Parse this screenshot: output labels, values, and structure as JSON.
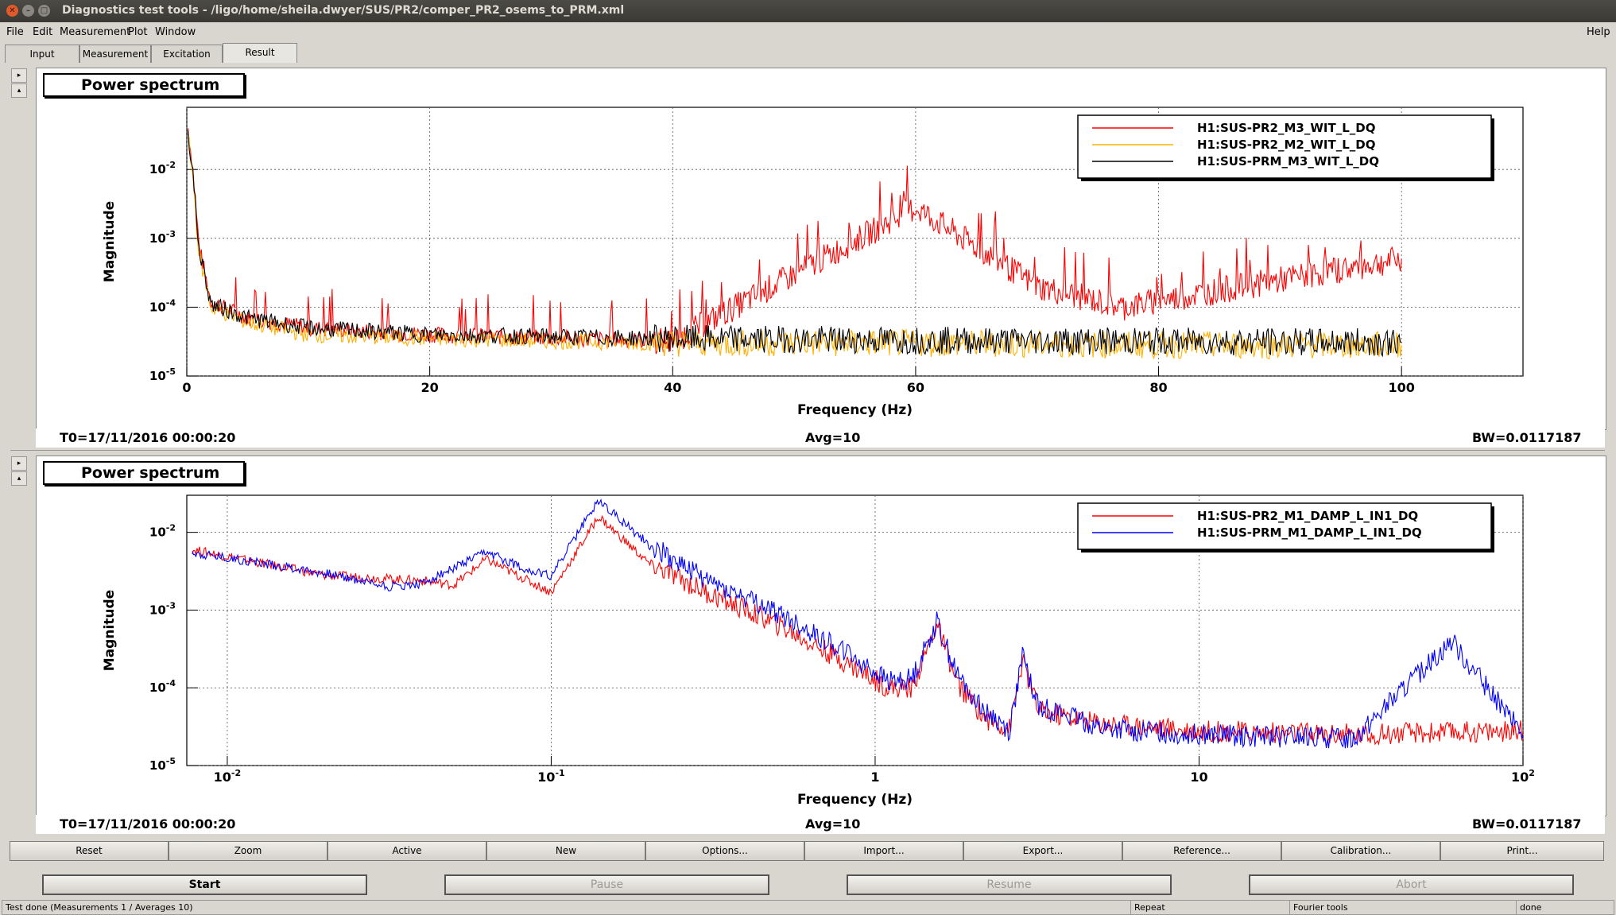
{
  "window": {
    "title": "Diagnostics test tools - /ligo/home/sheila.dwyer/SUS/PR2/comper_PR2_osems_to_PRM.xml",
    "controls": [
      "close-icon",
      "minimize-icon",
      "maximize-icon"
    ]
  },
  "menu": {
    "file": "File",
    "edit": "Edit",
    "measurement": "Measurement",
    "plot": "Plot",
    "window": "Window",
    "help": "Help"
  },
  "tabs": [
    "Input",
    "Measurement",
    "Excitation",
    "Result"
  ],
  "active_tab": "Result",
  "plots": [
    {
      "panel_title": "Power spectrum",
      "t0": "T0=17/11/2016 00:00:20",
      "avg": "Avg=10",
      "bw": "BW=0.0117187"
    },
    {
      "panel_title": "Power spectrum",
      "t0": "T0=17/11/2016 00:00:20",
      "avg": "Avg=10",
      "bw": "BW=0.0117187"
    }
  ],
  "chart_data": [
    {
      "type": "line",
      "xlabel": "Frequency (Hz)",
      "ylabel": "Magnitude",
      "xscale": "linear",
      "yscale": "log",
      "xlim": [
        0,
        110
      ],
      "ylim": [
        1e-05,
        0.08
      ],
      "xticks": [
        "0",
        "20",
        "40",
        "60",
        "80",
        "100"
      ],
      "yticks": [
        "10^-5",
        "10^-4",
        "10^-3",
        "10^-2"
      ],
      "grid": true,
      "legend_position": "top-right",
      "series": [
        {
          "name": "H1:SUS-PR2_M3_WIT_L_DQ",
          "color": "#ff0000",
          "x": [
            0.1,
            0.5,
            1,
            1.5,
            2,
            5,
            10,
            20,
            40,
            60,
            70,
            77,
            100
          ],
          "y": [
            0.04,
            0.01,
            0.0008,
            0.0003,
            0.00012,
            7e-05,
            5e-05,
            4e-05,
            3.2e-05,
            0.0028,
            0.0002,
            0.0001,
            0.0005
          ]
        },
        {
          "name": "H1:SUS-PR2_M2_WIT_L_DQ",
          "color": "#ffb000",
          "x": [
            0.1,
            0.5,
            1,
            2,
            5,
            10,
            20,
            40,
            60,
            80,
            100
          ],
          "y": [
            0.03,
            0.008,
            0.0006,
            0.0001,
            6e-05,
            4e-05,
            3.5e-05,
            3e-05,
            3e-05,
            2.8e-05,
            2.8e-05
          ]
        },
        {
          "name": "H1:SUS-PRM_M3_WIT_L_DQ",
          "color": "#000000",
          "x": [
            0.1,
            0.5,
            1,
            2,
            5,
            10,
            20,
            40,
            60,
            80,
            100
          ],
          "y": [
            0.035,
            0.009,
            0.0007,
            0.00011,
            7e-05,
            5e-05,
            4e-05,
            3.5e-05,
            3.3e-05,
            3.2e-05,
            3.1e-05
          ]
        }
      ]
    },
    {
      "type": "line",
      "xlabel": "Frequency (Hz)",
      "ylabel": "Magnitude",
      "xscale": "log",
      "yscale": "log",
      "xlim": [
        0.0075,
        100
      ],
      "ylim": [
        1e-05,
        0.03
      ],
      "xticks": [
        "10^-2",
        "10^-1",
        "1",
        "10",
        "10^2"
      ],
      "yticks": [
        "10^-5",
        "10^-4",
        "10^-3",
        "10^-2"
      ],
      "grid": true,
      "legend_position": "top-right",
      "series": [
        {
          "name": "H1:SUS-PR2_M1_DAMP_L_IN1_DQ",
          "color": "#ff0000",
          "x": [
            0.0078,
            0.02,
            0.04,
            0.05,
            0.063,
            0.09,
            0.1,
            0.14,
            0.2,
            0.3,
            0.5,
            0.8,
            1.1,
            1.3,
            1.55,
            1.8,
            2.2,
            2.6,
            2.85,
            3.2,
            5,
            10,
            30,
            100
          ],
          "y": [
            0.006,
            0.0028,
            0.0024,
            0.0021,
            0.0045,
            0.0021,
            0.0017,
            0.016,
            0.004,
            0.0017,
            0.00065,
            0.00022,
            0.0001,
            0.0001,
            0.00065,
            0.00011,
            4e-05,
            3e-05,
            0.00022,
            5e-05,
            3.5e-05,
            2.8e-05,
            2.5e-05,
            2.8e-05
          ]
        },
        {
          "name": "H1:SUS-PRM_M1_DAMP_L_IN1_DQ",
          "color": "#0000ff",
          "x": [
            0.0078,
            0.02,
            0.032,
            0.04,
            0.063,
            0.09,
            0.1,
            0.14,
            0.2,
            0.3,
            0.5,
            0.8,
            1.1,
            1.3,
            1.55,
            1.8,
            2.2,
            2.6,
            2.85,
            3.2,
            5,
            10,
            30,
            60,
            100
          ],
          "y": [
            0.0055,
            0.003,
            0.002,
            0.0022,
            0.0055,
            0.003,
            0.0028,
            0.026,
            0.007,
            0.0025,
            0.0009,
            0.0003,
            0.00012,
            0.00013,
            0.0007,
            0.00014,
            5e-05,
            2.8e-05,
            0.00025,
            6e-05,
            3e-05,
            2.5e-05,
            2.2e-05,
            0.0004,
            2.5e-05
          ]
        }
      ]
    }
  ],
  "function_buttons": [
    "Reset",
    "Zoom",
    "Active",
    "New",
    "Options...",
    "Import...",
    "Export...",
    "Reference...",
    "Calibration...",
    "Print..."
  ],
  "control_buttons": {
    "start": "Start",
    "pause": "Pause",
    "resume": "Resume",
    "abort": "Abort"
  },
  "status": {
    "message": "Test done (Measurements 1 / Averages 10)",
    "mode": "Repeat",
    "tool": "Fourier tools",
    "state": "done"
  }
}
